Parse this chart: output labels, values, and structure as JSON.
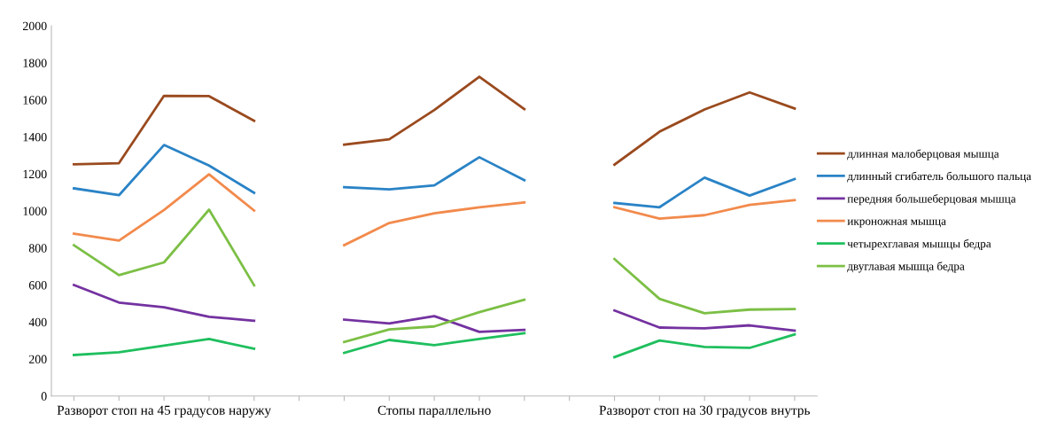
{
  "chart_data": {
    "type": "line",
    "categories": [
      null,
      null,
      "Разворот стоп на 45 градусов наружу",
      null,
      null,
      null,
      null,
      null,
      "Стопы параллельно",
      null,
      null,
      null,
      null,
      null,
      "Разворот стоп на 30 градусов внутрь",
      null,
      null
    ],
    "series": [
      {
        "name": "длинная малоберцовая мышца",
        "color": "#9a4a1e",
        "values": [
          1252,
          1258,
          1622,
          1620,
          1487,
          null,
          1358,
          1387,
          1545,
          1725,
          1550,
          null,
          1250,
          1428,
          1548,
          1640,
          1553
        ]
      },
      {
        "name": "длинный сгибатель большого пальца",
        "color": "#2a83c6",
        "values": [
          1122,
          1085,
          1356,
          1245,
          1098,
          null,
          1128,
          1116,
          1138,
          1290,
          1166,
          null,
          1043,
          1020,
          1180,
          1083,
          1172
        ]
      },
      {
        "name": "передняя большеберцовая мышца",
        "color": "#7432a0",
        "values": [
          600,
          505,
          480,
          428,
          407,
          null,
          413,
          392,
          432,
          347,
          357,
          null,
          462,
          370,
          366,
          382,
          353
        ]
      },
      {
        "name": "икроножная мышца",
        "color": "#f28a4c",
        "values": [
          877,
          840,
          1005,
          1198,
          1002,
          null,
          815,
          935,
          987,
          1020,
          1046,
          null,
          1020,
          958,
          977,
          1033,
          1058
        ]
      },
      {
        "name": "четырехглавая мышцы бедра",
        "color": "#1fbf5e",
        "values": [
          222,
          237,
          273,
          308,
          256,
          null,
          233,
          303,
          275,
          308,
          340,
          null,
          210,
          300,
          265,
          260,
          333
        ]
      },
      {
        "name": "двуглавая мышца бедра",
        "color": "#7cbf45",
        "values": [
          815,
          653,
          722,
          1007,
          598,
          null,
          292,
          360,
          376,
          453,
          520,
          null,
          740,
          525,
          447,
          467,
          470
        ]
      }
    ],
    "ylim": [
      0,
      2000
    ],
    "yticks": [
      0,
      200,
      400,
      600,
      800,
      1000,
      1200,
      1400,
      1600,
      1800,
      2000
    ],
    "grid": false,
    "legend": "right",
    "marker": "none",
    "line_style": "solid"
  }
}
